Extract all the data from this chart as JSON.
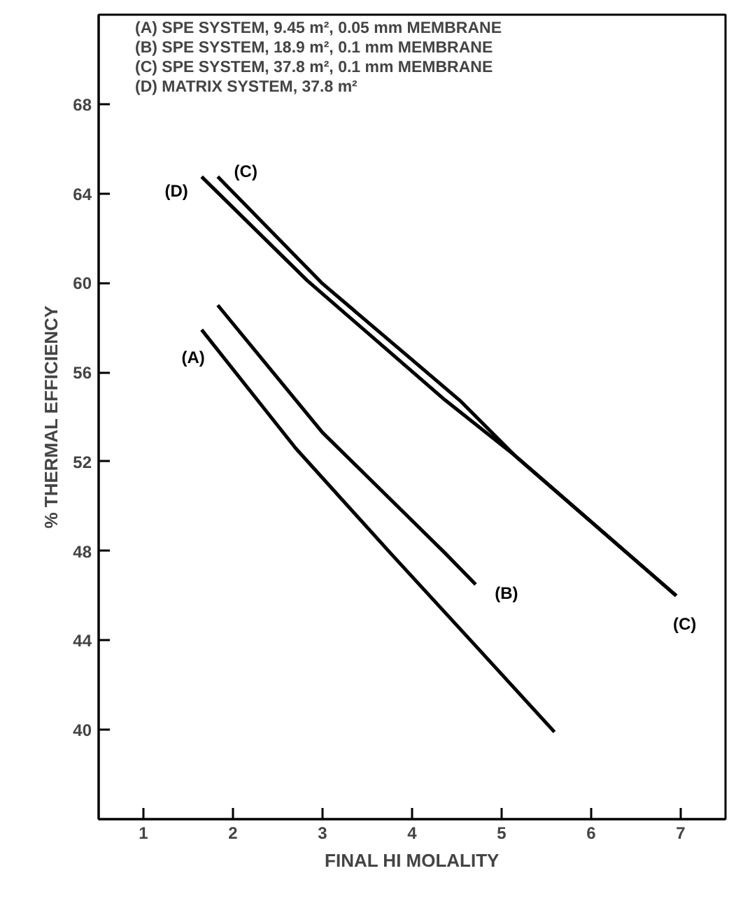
{
  "chart_data": {
    "type": "line",
    "xlabel": "FINAL HI MOLALITY",
    "ylabel": "% THERMAL EFFICIENCY",
    "xlim": [
      0.5,
      7.5
    ],
    "ylim": [
      36,
      72
    ],
    "xticks": [
      1,
      2,
      3,
      4,
      5,
      6,
      7
    ],
    "yticks": [
      40,
      44,
      48,
      52,
      56,
      60,
      64,
      68
    ],
    "grid": false,
    "marker": "none",
    "line_style": "solid",
    "series": [
      {
        "name": "(A)",
        "color": "#000000",
        "x": [
          1.65,
          2.7,
          3.76,
          4.7,
          5.59
        ],
        "values": [
          57.9,
          52.6,
          47.9,
          43.8,
          39.9
        ]
      },
      {
        "name": "(B)",
        "color": "#000000",
        "x": [
          1.83,
          3.0,
          4.37,
          4.71
        ],
        "values": [
          59.0,
          53.3,
          47.9,
          46.5
        ]
      },
      {
        "name": "(C)",
        "color": "#000000",
        "x": [
          1.83,
          2.99,
          4.53,
          5.14,
          6.95
        ],
        "values": [
          64.75,
          60.0,
          54.75,
          52.3,
          46.0
        ]
      },
      {
        "name": "(D)",
        "color": "#000000",
        "x": [
          1.65,
          2.83,
          4.37,
          5.14,
          6.95
        ],
        "values": [
          64.75,
          60.1,
          54.75,
          52.3,
          46.0
        ]
      }
    ],
    "annotations": [
      "(A) SPE SYSTEM, 9.45 m², 0.05 mm MEMBRANE",
      "(B) SPE SYSTEM, 18.9 m², 0.1 mm MEMBRANE",
      "(C) SPE SYSTEM, 37.8 m², 0.1 mm MEMBRANE",
      "(D) MATRIX SYSTEM, 37.8 m²"
    ]
  }
}
